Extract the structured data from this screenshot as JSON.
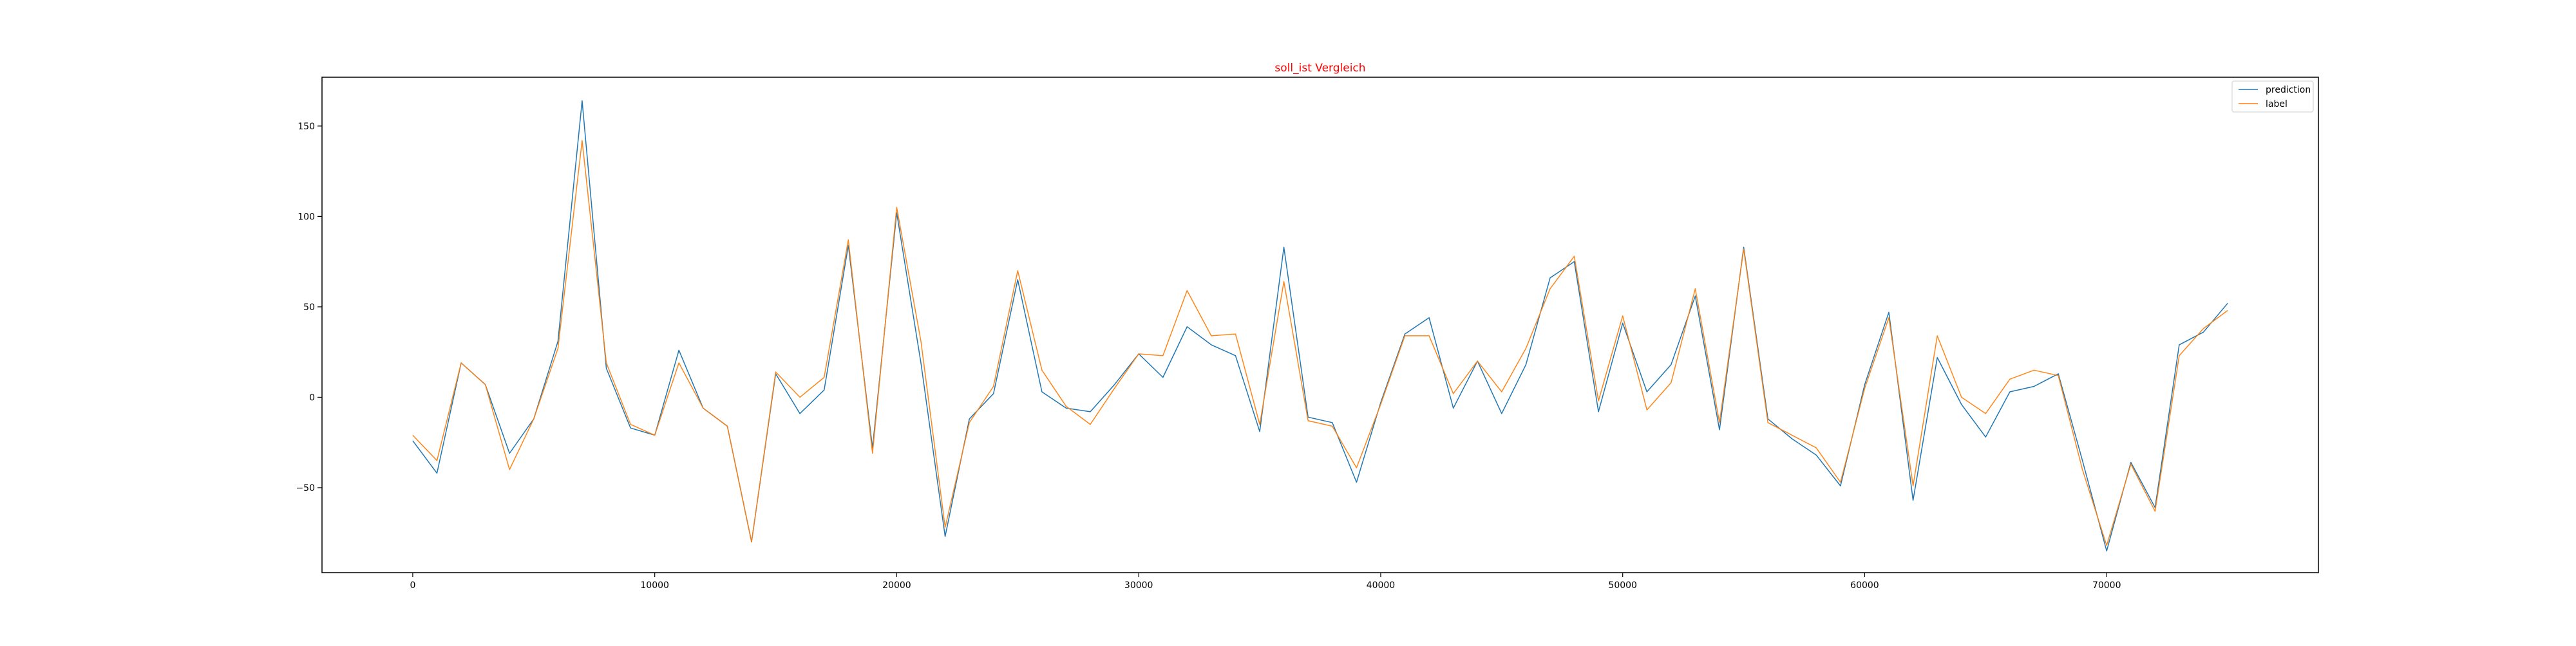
{
  "colors": {
    "title": "#ff0000",
    "prediction": "#1f77b4",
    "label": "#ff7f0e",
    "axis": "#000000",
    "background": "#ffffff"
  },
  "chart_data": {
    "type": "line",
    "title": "soll_ist Vergleich",
    "xlabel": "",
    "ylabel": "",
    "xlim": [
      -3750,
      78750
    ],
    "ylim": [
      -97,
      177
    ],
    "x_ticks": [
      0,
      10000,
      20000,
      30000,
      40000,
      50000,
      60000,
      70000
    ],
    "x_tick_labels": [
      "0",
      "10000",
      "20000",
      "30000",
      "40000",
      "50000",
      "60000",
      "70000"
    ],
    "y_ticks": [
      -50,
      0,
      50,
      100,
      150
    ],
    "y_tick_labels": [
      "−50",
      "0",
      "50",
      "100",
      "150"
    ],
    "grid": false,
    "legend": {
      "position": "upper right"
    },
    "x": [
      0,
      1000,
      2000,
      3000,
      4000,
      5000,
      6000,
      7000,
      8000,
      9000,
      10000,
      11000,
      12000,
      13000,
      14000,
      15000,
      16000,
      17000,
      18000,
      19000,
      20000,
      21000,
      22000,
      23000,
      24000,
      25000,
      26000,
      27000,
      28000,
      29000,
      30000,
      31000,
      32000,
      33000,
      34000,
      35000,
      36000,
      37000,
      38000,
      39000,
      40000,
      41000,
      42000,
      43000,
      44000,
      45000,
      46000,
      47000,
      48000,
      49000,
      50000,
      51000,
      52000,
      53000,
      54000,
      55000,
      56000,
      57000,
      58000,
      59000,
      60000,
      61000,
      62000,
      63000,
      64000,
      65000,
      66000,
      67000,
      68000,
      69000,
      70000,
      71000,
      72000,
      73000,
      74000,
      75000
    ],
    "series": [
      {
        "name": "prediction",
        "color": "#1f77b4",
        "values": [
          -24,
          -42,
          19,
          7,
          -31,
          -12,
          31,
          164,
          16,
          -17,
          -21,
          26,
          -6,
          -16,
          -80,
          13,
          -9,
          4,
          84,
          -28,
          102,
          19,
          -77,
          -12,
          2,
          65,
          3,
          -6,
          -8,
          7,
          24,
          11,
          39,
          29,
          23,
          -19,
          83,
          -11,
          -14,
          -47,
          -3,
          35,
          44,
          -6,
          20,
          -9,
          18,
          66,
          75,
          -8,
          41,
          3,
          18,
          56,
          -18,
          83,
          -12,
          -23,
          -32,
          -49,
          7,
          47,
          -57,
          22,
          -4,
          -22,
          3,
          6,
          13,
          -35,
          -85,
          -36,
          -61,
          29,
          36,
          52
        ]
      },
      {
        "name": "label",
        "color": "#ff7f0e",
        "values": [
          -21,
          -35,
          19,
          7,
          -40,
          -12,
          27,
          142,
          19,
          -15,
          -21,
          19,
          -6,
          -16,
          -80,
          14,
          0,
          11,
          87,
          -31,
          105,
          31,
          -72,
          -14,
          6,
          70,
          15,
          -5,
          -15,
          5,
          24,
          23,
          59,
          34,
          35,
          -15,
          64,
          -13,
          -16,
          -39,
          -4,
          34,
          34,
          2,
          20,
          3,
          27,
          60,
          78,
          -2,
          45,
          -7,
          8,
          60,
          -14,
          82,
          -14,
          -21,
          -28,
          -47,
          5,
          44,
          -49,
          34,
          0,
          -9,
          10,
          15,
          12,
          -40,
          -82,
          -37,
          -63,
          23,
          38,
          48
        ]
      }
    ]
  }
}
